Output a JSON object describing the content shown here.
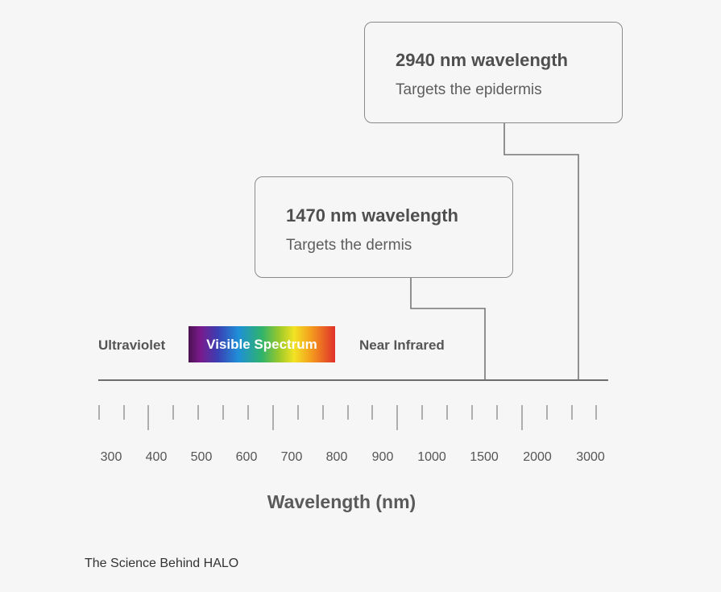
{
  "callouts": [
    {
      "title": "2940 nm wavelength",
      "subtitle": "Targets the epidermis"
    },
    {
      "title": "1470 nm wavelength",
      "subtitle": "Targets the dermis"
    }
  ],
  "regions": {
    "ultraviolet": "Ultraviolet",
    "visible": "Visible Spectrum",
    "near_infrared": "Near Infrared"
  },
  "axis": {
    "tick_labels": [
      "300",
      "400",
      "500",
      "600",
      "700",
      "800",
      "900",
      "1000",
      "1500",
      "2000",
      "3000"
    ],
    "title": "Wavelength (nm)"
  },
  "caption": "The Science Behind HALO",
  "colors": {
    "line": "#777777",
    "text": "#555555",
    "background": "#f6f6f6"
  }
}
